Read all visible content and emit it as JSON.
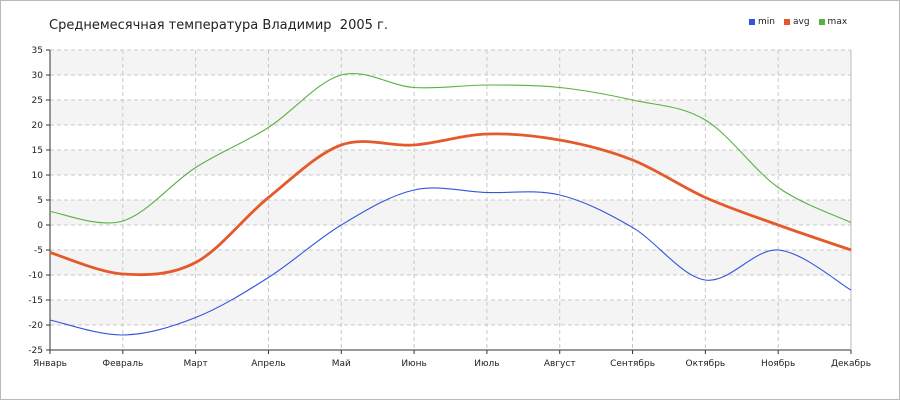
{
  "chart_data": {
    "type": "line",
    "title": "Среднемесячная температура Владимир  2005 г.",
    "xlabel": "",
    "ylabel": "",
    "categories": [
      "Январь",
      "Февраль",
      "Март",
      "Апрель",
      "Май",
      "Июнь",
      "Июль",
      "Август",
      "Сентябрь",
      "Октябрь",
      "Ноябрь",
      "Декабрь"
    ],
    "ylim": [
      -25,
      35
    ],
    "yticks": [
      -25,
      -20,
      -15,
      -10,
      -5,
      0,
      5,
      10,
      15,
      20,
      25,
      30,
      35
    ],
    "grid": true,
    "legend_position": "top-right",
    "series": [
      {
        "name": "min",
        "color": "#3355dd",
        "values": [
          -19,
          -22,
          -18.5,
          -10.5,
          0,
          7,
          6.5,
          6,
          -0.5,
          -11,
          -5,
          -13
        ]
      },
      {
        "name": "avg",
        "color": "#e55a2b",
        "values": [
          -5.5,
          -9.8,
          -7.5,
          5.5,
          16,
          16,
          18.2,
          17,
          13,
          5.5,
          0,
          -5
        ]
      },
      {
        "name": "max",
        "color": "#5ab043",
        "values": [
          2.7,
          0.8,
          11.5,
          19.5,
          30,
          27.5,
          28,
          27.5,
          25,
          21,
          7.5,
          0.5
        ]
      }
    ]
  }
}
